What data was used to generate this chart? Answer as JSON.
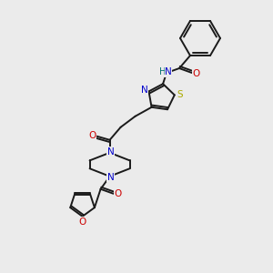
{
  "bg_color": "#ebebeb",
  "bond_color": "#1a1a1a",
  "atom_colors": {
    "N": "#0000cc",
    "O": "#cc0000",
    "S": "#aaaa00",
    "H": "#007070",
    "C": "#1a1a1a"
  }
}
